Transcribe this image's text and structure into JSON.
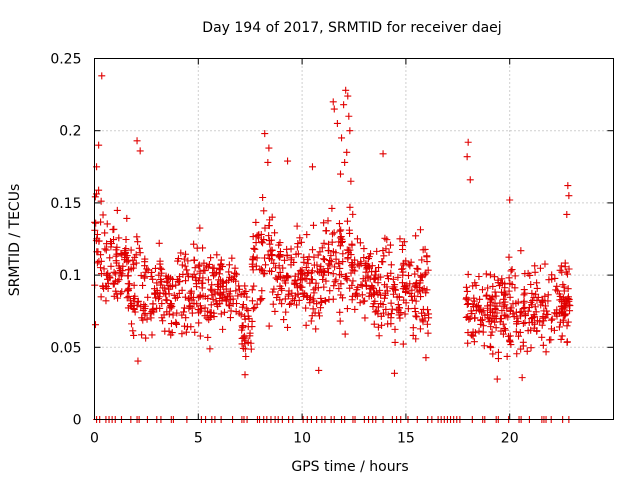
{
  "chart_data": {
    "type": "scatter",
    "title": "Day 194 of 2017, SRMTID for receiver daej",
    "xlabel": "GPS time / hours",
    "ylabel": "SRMTID / TECUs",
    "xlim": [
      0,
      25
    ],
    "ylim": [
      0,
      0.25
    ],
    "xticks": [
      0,
      5,
      10,
      15,
      20
    ],
    "xtick_labels": [
      "0",
      "5",
      "10",
      "15",
      "20"
    ],
    "yticks": [
      0,
      0.05,
      0.1,
      0.15,
      0.2,
      0.25
    ],
    "ytick_labels": [
      "0",
      "0.05",
      "0.1",
      "0.15",
      "0.2",
      "0.25"
    ],
    "grid": true,
    "marker": "+",
    "color": "#e00000",
    "series": [
      {
        "name": "SRMTID",
        "segments": [
          {
            "x": [
              0.0,
              0.4
            ],
            "center": 0.12,
            "spread": 0.035
          },
          {
            "x": [
              0.4,
              1.6
            ],
            "center": 0.105,
            "spread": 0.03
          },
          {
            "x": [
              1.6,
              2.8
            ],
            "center": 0.09,
            "spread": 0.03
          },
          {
            "x": [
              2.8,
              4.0
            ],
            "center": 0.085,
            "spread": 0.025
          },
          {
            "x": [
              4.0,
              5.8
            ],
            "center": 0.09,
            "spread": 0.03
          },
          {
            "x": [
              5.8,
              7.0
            ],
            "center": 0.09,
            "spread": 0.025
          },
          {
            "x": [
              7.0,
              7.6
            ],
            "center": 0.07,
            "spread": 0.025
          },
          {
            "x": [
              7.6,
              8.6
            ],
            "center": 0.11,
            "spread": 0.035
          },
          {
            "x": [
              8.6,
              10.0
            ],
            "center": 0.1,
            "spread": 0.03
          },
          {
            "x": [
              10.0,
              11.0
            ],
            "center": 0.095,
            "spread": 0.03
          },
          {
            "x": [
              11.0,
              12.6
            ],
            "center": 0.11,
            "spread": 0.035
          },
          {
            "x": [
              12.6,
              14.0
            ],
            "center": 0.095,
            "spread": 0.03
          },
          {
            "x": [
              14.0,
              16.1
            ],
            "center": 0.09,
            "spread": 0.03
          },
          {
            "x": [
              17.9,
              20.5
            ],
            "center": 0.075,
            "spread": 0.025
          },
          {
            "x": [
              20.5,
              22.9
            ],
            "center": 0.08,
            "spread": 0.028
          }
        ],
        "outliers": [
          {
            "x": 0.35,
            "y": 0.238
          },
          {
            "x": 0.2,
            "y": 0.19
          },
          {
            "x": 0.1,
            "y": 0.175
          },
          {
            "x": 2.05,
            "y": 0.193
          },
          {
            "x": 2.2,
            "y": 0.186
          },
          {
            "x": 8.2,
            "y": 0.198
          },
          {
            "x": 8.4,
            "y": 0.188
          },
          {
            "x": 8.35,
            "y": 0.178
          },
          {
            "x": 9.3,
            "y": 0.179
          },
          {
            "x": 10.5,
            "y": 0.175
          },
          {
            "x": 11.5,
            "y": 0.22
          },
          {
            "x": 11.55,
            "y": 0.215
          },
          {
            "x": 11.7,
            "y": 0.205
          },
          {
            "x": 12.1,
            "y": 0.228
          },
          {
            "x": 12.2,
            "y": 0.224
          },
          {
            "x": 12.0,
            "y": 0.218
          },
          {
            "x": 12.25,
            "y": 0.21
          },
          {
            "x": 12.3,
            "y": 0.2
          },
          {
            "x": 11.9,
            "y": 0.195
          },
          {
            "x": 12.15,
            "y": 0.185
          },
          {
            "x": 12.05,
            "y": 0.178
          },
          {
            "x": 11.85,
            "y": 0.17
          },
          {
            "x": 12.35,
            "y": 0.165
          },
          {
            "x": 13.9,
            "y": 0.184
          },
          {
            "x": 18.0,
            "y": 0.192
          },
          {
            "x": 17.95,
            "y": 0.182
          },
          {
            "x": 18.1,
            "y": 0.166
          },
          {
            "x": 22.8,
            "y": 0.162
          },
          {
            "x": 22.85,
            "y": 0.155
          },
          {
            "x": 22.75,
            "y": 0.142
          },
          {
            "x": 20.0,
            "y": 0.152
          },
          {
            "x": 7.25,
            "y": 0.031
          },
          {
            "x": 10.8,
            "y": 0.034
          },
          {
            "x": 14.45,
            "y": 0.032
          },
          {
            "x": 19.4,
            "y": 0.028
          },
          {
            "x": 20.6,
            "y": 0.029
          }
        ],
        "zero_x": [
          0.1,
          0.25,
          0.55,
          0.7,
          0.85,
          1.0,
          1.3,
          1.75,
          2.05,
          2.15,
          2.55,
          3.0,
          3.2,
          3.7,
          3.8,
          4.45,
          5.15,
          5.35,
          5.65,
          5.8,
          6.1,
          6.65,
          7.1,
          7.2,
          7.35,
          7.85,
          7.95,
          8.15,
          8.3,
          8.5,
          8.7,
          8.85,
          9.05,
          9.35,
          9.55,
          10.05,
          10.25,
          10.45,
          10.7,
          10.95,
          11.1,
          11.4,
          11.55,
          11.9,
          12.05,
          12.45,
          12.55,
          13.0,
          13.2,
          13.4,
          13.55,
          13.9,
          14.35,
          14.55,
          14.75,
          15.1,
          15.55,
          16.05,
          16.25,
          16.55,
          16.7,
          16.85,
          17.0,
          17.15,
          17.3,
          17.45,
          17.6,
          18.2,
          18.7,
          18.8,
          19.35,
          19.45,
          19.95,
          20.45,
          20.55,
          20.95,
          21.55,
          21.65,
          21.75,
          22.0,
          22.55,
          22.85
        ]
      }
    ]
  }
}
